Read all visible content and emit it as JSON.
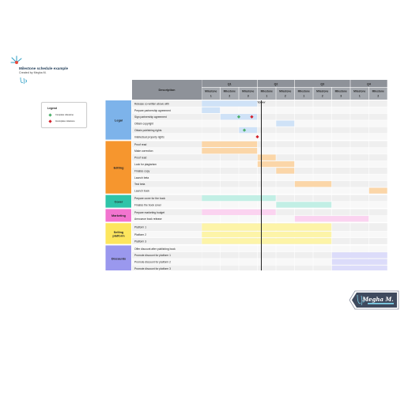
{
  "title": "Milestone schedule example",
  "subtitle": "Created by Megha M.",
  "legend": {
    "title": "Legend",
    "items": [
      {
        "label": "Complete milestone",
        "color": "#4caf6a"
      },
      {
        "label": "Incomplete milestone",
        "color": "#d3202a"
      }
    ]
  },
  "header": {
    "description": "Description",
    "quarters": [
      "Q1",
      "Q2",
      "Q3",
      "Q4"
    ],
    "milestones": [
      {
        "quarter": 0,
        "label": "Milestone 1"
      },
      {
        "quarter": 0,
        "label": "Milestone 2"
      },
      {
        "quarter": 0,
        "label": "Milestone 3"
      },
      {
        "quarter": 1,
        "label": "Milestone 1"
      },
      {
        "quarter": 1,
        "label": "Milestone 2"
      },
      {
        "quarter": 2,
        "label": "Milestone 1"
      },
      {
        "quarter": 2,
        "label": "Milestone 2"
      },
      {
        "quarter": 2,
        "label": "Milestone 3"
      },
      {
        "quarter": 3,
        "label": "Milestone 1"
      },
      {
        "quarter": 3,
        "label": "Milestone 2"
      }
    ]
  },
  "today": {
    "label": "TODAY",
    "column": 3
  },
  "groups": [
    {
      "name": "Legal",
      "color": "#7db3ea",
      "bar": "#cfe2f7",
      "tasks": [
        {
          "label": "Release co-written above with",
          "bars": [
            [
              0,
              3
            ]
          ]
        },
        {
          "label": "Prepare partnership agreement",
          "bars": [
            [
              0,
              1
            ]
          ]
        },
        {
          "label": "Sign partnership agreement",
          "bars": [
            [
              1,
              3
            ]
          ],
          "marks": [
            {
              "col": 2.0,
              "status": "complete"
            },
            {
              "col": 2.7,
              "status": "incomplete"
            }
          ]
        },
        {
          "label": "Obtain copyright",
          "bars": [
            [
              4,
              5
            ]
          ]
        },
        {
          "label": "Obtain publishing rights",
          "bars": [
            [
              2,
              3
            ]
          ],
          "marks": [
            {
              "col": 2.3,
              "status": "complete"
            }
          ]
        },
        {
          "label": "Intellectual property rights",
          "bars": [],
          "marks": [
            {
              "col": 3.0,
              "status": "incomplete"
            }
          ]
        }
      ]
    },
    {
      "name": "Editing",
      "color": "#f6962e",
      "bar": "#fbd6a8",
      "tasks": [
        {
          "label": "Proof read",
          "bars": [
            [
              0,
              3
            ]
          ]
        },
        {
          "label": "Make correction",
          "bars": [
            [
              0,
              3
            ]
          ]
        },
        {
          "label": "Proof read",
          "bars": [
            [
              3,
              4
            ]
          ]
        },
        {
          "label": "Look for plagiarism",
          "bars": [
            [
              3,
              5
            ]
          ]
        },
        {
          "label": "Finalize copy",
          "bars": [
            [
              4,
              5
            ]
          ]
        },
        {
          "label": "Launch beta",
          "bars": []
        },
        {
          "label": "Test beta",
          "bars": [
            [
              5,
              7
            ]
          ]
        },
        {
          "label": "Launch book",
          "bars": [
            [
              9,
              10
            ]
          ]
        }
      ]
    },
    {
      "name": "Cover",
      "color": "#2fc4a9",
      "bar": "#c2efe5",
      "tasks": [
        {
          "label": "Prepare cover for the book",
          "bars": [
            [
              0,
              4
            ]
          ]
        },
        {
          "label": "Finalize the book cover",
          "bars": [
            [
              4,
              7
            ]
          ]
        }
      ]
    },
    {
      "name": "Marketing",
      "color": "#f274cf",
      "bar": "#fbd3f0",
      "tasks": [
        {
          "label": "Prepare marketing budget",
          "bars": [
            [
              0,
              4
            ]
          ]
        },
        {
          "label": "Announce book release",
          "bars": [
            [
              5,
              9
            ]
          ]
        }
      ]
    },
    {
      "name": "Selling platform",
      "color": "#fde65e",
      "bar": "#fdf4a8",
      "tasks": [
        {
          "label": "Platform 1",
          "bars": [
            [
              0,
              7
            ]
          ],
          "tall": true
        },
        {
          "label": "Platform 2",
          "bars": [
            [
              0,
              7
            ]
          ]
        },
        {
          "label": "Platform 3",
          "bars": [
            [
              0,
              7
            ]
          ]
        }
      ]
    },
    {
      "name": "Discounts",
      "color": "#9a98ee",
      "bar": "#dcdcfa",
      "tasks": [
        {
          "label": "Offer discount after publishing book",
          "bars": []
        },
        {
          "label": "Promote discount for platform 1",
          "bars": [
            [
              7,
              10
            ]
          ]
        },
        {
          "label": "Promote discount for platform 2",
          "bars": [
            [
              7,
              10
            ]
          ]
        },
        {
          "label": "Promote discount for platform 3",
          "bars": [
            [
              7,
              10
            ]
          ]
        }
      ]
    }
  ],
  "watermark": "Megha M."
}
